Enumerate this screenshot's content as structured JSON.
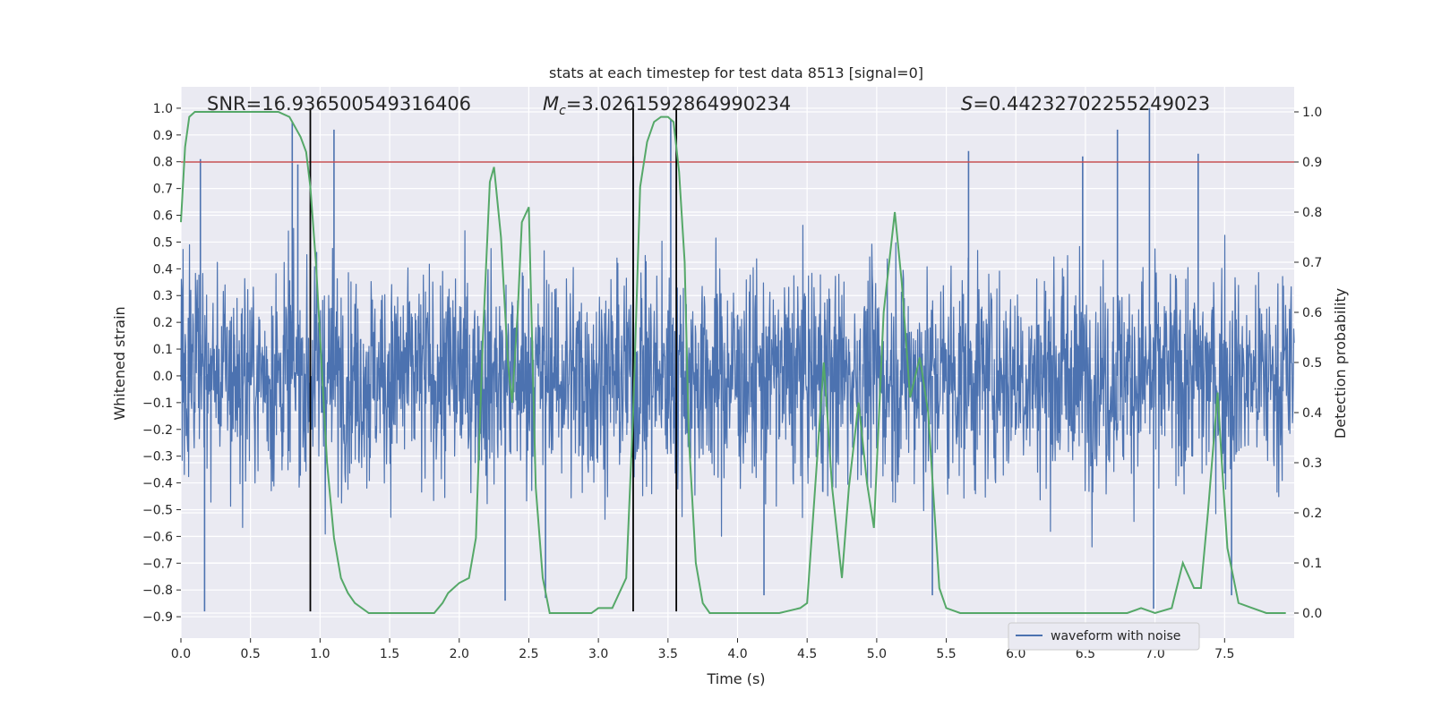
{
  "chart_data": {
    "type": "line",
    "title": "stats at each timestep for test data 8513 [signal=0]",
    "xlabel": "Time (s)",
    "ylabel_left": "Whitened strain",
    "ylabel_right": "Detection probability",
    "xlim": [
      0.0,
      8.0
    ],
    "ylim_left": [
      -0.98,
      1.08
    ],
    "ylim_right": [
      -0.05,
      1.05
    ],
    "x_ticks": [
      0.0,
      0.5,
      1.0,
      1.5,
      2.0,
      2.5,
      3.0,
      3.5,
      4.0,
      4.5,
      5.0,
      5.5,
      6.0,
      6.5,
      7.0,
      7.5
    ],
    "x_tick_labels": [
      "0.0",
      "0.5",
      "1.0",
      "1.5",
      "2.0",
      "2.5",
      "3.0",
      "3.5",
      "4.0",
      "4.5",
      "5.0",
      "5.5",
      "6.0",
      "6.5",
      "7.0",
      "7.5"
    ],
    "y_left_ticks": [
      -0.9,
      -0.8,
      -0.7,
      -0.6,
      -0.5,
      -0.4,
      -0.3,
      -0.2,
      -0.1,
      0.0,
      0.1,
      0.2,
      0.3,
      0.4,
      0.5,
      0.6,
      0.7,
      0.8,
      0.9,
      1.0
    ],
    "y_left_tick_labels": [
      "−0.9",
      "−0.8",
      "−0.7",
      "−0.6",
      "−0.5",
      "−0.4",
      "−0.3",
      "−0.2",
      "−0.1",
      "0.0",
      "0.1",
      "0.2",
      "0.3",
      "0.4",
      "0.5",
      "0.6",
      "0.7",
      "0.8",
      "0.9",
      "1.0"
    ],
    "y_right_ticks": [
      0.0,
      0.1,
      0.2,
      0.3,
      0.4,
      0.5,
      0.6,
      0.7,
      0.8,
      0.9,
      1.0
    ],
    "y_right_tick_labels": [
      "0.0",
      "0.1",
      "0.2",
      "0.3",
      "0.4",
      "0.5",
      "0.6",
      "0.7",
      "0.8",
      "0.9",
      "1.0"
    ],
    "grid": true,
    "annotations": [
      {
        "text_pre": "SNR=16.936500549316406",
        "x": 0.19
      },
      {
        "text_var": "M",
        "text_sub": "c",
        "text_post": "=3.0261592864990234",
        "x": 2.6
      },
      {
        "text_var": "S",
        "text_post": "=0.44232702255249023",
        "x": 5.6
      }
    ],
    "threshold": {
      "value": 0.9,
      "axis": "right",
      "color": "#c44e52"
    },
    "vertical_lines": [
      0.93,
      3.25,
      3.56
    ],
    "vertical_lines_range_left": [
      -0.88,
      1.0
    ],
    "series": [
      {
        "name": "waveform with noise",
        "axis": "left",
        "color": "#4c72b0",
        "x_range": [
          0.0,
          8.0
        ],
        "envelope_note": "dense noise, mostly within ±0.5",
        "spikes": [
          [
            0.14,
            0.81
          ],
          [
            0.17,
            -0.88
          ],
          [
            0.8,
            0.95
          ],
          [
            0.84,
            0.79
          ],
          [
            1.1,
            0.92
          ],
          [
            3.25,
            0.82
          ],
          [
            3.52,
            0.96
          ],
          [
            5.66,
            0.84
          ],
          [
            6.48,
            0.82
          ],
          [
            6.73,
            0.92
          ],
          [
            6.96,
            1.0
          ],
          [
            6.99,
            -0.87
          ],
          [
            7.31,
            0.83
          ],
          [
            5.4,
            -0.82
          ],
          [
            2.62,
            -0.83
          ],
          [
            2.33,
            -0.84
          ],
          [
            4.19,
            -0.82
          ],
          [
            7.55,
            -0.82
          ]
        ]
      },
      {
        "name": "detection probability",
        "axis": "right",
        "color": "#55a868",
        "x": [
          0.0,
          0.03,
          0.06,
          0.1,
          0.2,
          0.4,
          0.6,
          0.7,
          0.78,
          0.82,
          0.86,
          0.9,
          0.93,
          0.97,
          1.0,
          1.05,
          1.1,
          1.15,
          1.2,
          1.25,
          1.35,
          1.45,
          1.55,
          1.65,
          1.75,
          1.82,
          1.88,
          1.92,
          2.0,
          2.07,
          2.12,
          2.17,
          2.22,
          2.25,
          2.3,
          2.35,
          2.38,
          2.42,
          2.45,
          2.5,
          2.55,
          2.6,
          2.65,
          2.75,
          2.85,
          2.95,
          3.0,
          3.1,
          3.2,
          3.25,
          3.3,
          3.35,
          3.4,
          3.45,
          3.5,
          3.54,
          3.58,
          3.62,
          3.65,
          3.7,
          3.75,
          3.8,
          3.85,
          3.95,
          4.1,
          4.3,
          4.45,
          4.5,
          4.62,
          4.68,
          4.75,
          4.8,
          4.87,
          4.93,
          4.98,
          5.05,
          5.13,
          5.18,
          5.24,
          5.31,
          5.37,
          5.45,
          5.5,
          5.6,
          5.75,
          6.0,
          6.2,
          6.5,
          6.7,
          6.8,
          6.9,
          7.0,
          7.12,
          7.2,
          7.28,
          7.33,
          7.38,
          7.45,
          7.48,
          7.52,
          7.6,
          7.8,
          7.94
        ],
        "y": [
          0.78,
          0.93,
          0.99,
          1.0,
          1.0,
          1.0,
          1.0,
          1.0,
          0.99,
          0.97,
          0.95,
          0.92,
          0.85,
          0.7,
          0.55,
          0.3,
          0.15,
          0.07,
          0.04,
          0.02,
          0.0,
          0.0,
          0.0,
          0.0,
          0.0,
          0.0,
          0.02,
          0.04,
          0.06,
          0.07,
          0.15,
          0.55,
          0.86,
          0.89,
          0.75,
          0.5,
          0.42,
          0.6,
          0.78,
          0.81,
          0.25,
          0.07,
          0.0,
          0.0,
          0.0,
          0.0,
          0.01,
          0.01,
          0.07,
          0.4,
          0.85,
          0.94,
          0.98,
          0.99,
          0.99,
          0.98,
          0.88,
          0.7,
          0.35,
          0.1,
          0.02,
          0.0,
          0.0,
          0.0,
          0.0,
          0.0,
          0.01,
          0.02,
          0.5,
          0.25,
          0.07,
          0.25,
          0.42,
          0.26,
          0.17,
          0.6,
          0.8,
          0.66,
          0.43,
          0.51,
          0.4,
          0.05,
          0.01,
          0.0,
          0.0,
          0.0,
          0.0,
          0.0,
          0.0,
          0.0,
          0.01,
          0.0,
          0.01,
          0.1,
          0.05,
          0.05,
          0.2,
          0.44,
          0.3,
          0.13,
          0.02,
          0.0,
          0.0
        ]
      }
    ],
    "legend": {
      "location": "lower-right",
      "entries": [
        "waveform with noise"
      ]
    }
  }
}
